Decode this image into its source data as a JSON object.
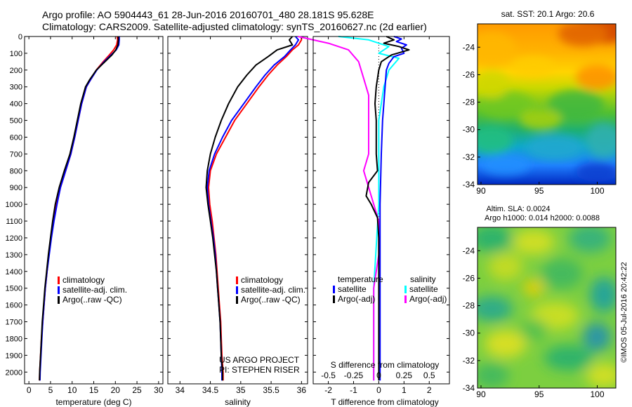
{
  "header": {
    "title_line1": "Argo profile: AO 5904443_61 28-Jun-2016 20160701_480 28.181S 95.628E",
    "title_line2": "Climatology: CARS2009. Satellite-adjusted climatology: synTS_20160627.nc (2d earlier)"
  },
  "colors": {
    "climatology": "#ff0000",
    "satellite": "#0000ff",
    "argo": "#000000",
    "salinity_satellite": "#00ffff",
    "salinity_argo": "#ff00ff"
  },
  "chart_data": [
    {
      "id": "temperature",
      "type": "line",
      "xlabel": "temperature (deg C)",
      "ylabel": "",
      "xlim": [
        -1,
        31
      ],
      "ylim": [
        2070,
        0
      ],
      "xticks": [
        0,
        5,
        10,
        15,
        20,
        25,
        30
      ],
      "yticks": [
        0,
        100,
        200,
        300,
        400,
        500,
        600,
        700,
        800,
        900,
        1000,
        1100,
        1200,
        1300,
        1400,
        1500,
        1600,
        1700,
        1800,
        1900,
        2000
      ],
      "legend": {
        "placement": "bottom-left",
        "entries": [
          "climatology",
          "satellite-adj. clim.",
          "Argo(..raw -QC)"
        ]
      },
      "series": [
        {
          "name": "climatology",
          "color": "#ff0000",
          "points": [
            [
              20.4,
              0
            ],
            [
              20.5,
              20
            ],
            [
              20.3,
              50
            ],
            [
              19.6,
              80
            ],
            [
              18.6,
              110
            ],
            [
              17.2,
              150
            ],
            [
              15.6,
              200
            ],
            [
              14.2,
              260
            ],
            [
              13.3,
              300
            ],
            [
              12.2,
              400
            ],
            [
              11.4,
              500
            ],
            [
              10.6,
              600
            ],
            [
              9.7,
              700
            ],
            [
              8.5,
              800
            ],
            [
              7.3,
              900
            ],
            [
              6.4,
              1000
            ],
            [
              5.7,
              1100
            ],
            [
              5.1,
              1200
            ],
            [
              4.6,
              1300
            ],
            [
              4.2,
              1400
            ],
            [
              3.8,
              1500
            ],
            [
              3.5,
              1600
            ],
            [
              3.2,
              1700
            ],
            [
              2.9,
              1800
            ],
            [
              2.7,
              1900
            ],
            [
              2.5,
              2000
            ],
            [
              2.45,
              2050
            ]
          ]
        },
        {
          "name": "satellite-adj. clim.",
          "color": "#0000ff",
          "points": [
            [
              20.9,
              0
            ],
            [
              20.9,
              20
            ],
            [
              20.8,
              50
            ],
            [
              20.2,
              80
            ],
            [
              19.0,
              110
            ],
            [
              17.4,
              150
            ],
            [
              15.7,
              200
            ],
            [
              14.2,
              260
            ],
            [
              13.3,
              300
            ],
            [
              12.2,
              400
            ],
            [
              11.4,
              500
            ],
            [
              10.6,
              600
            ],
            [
              9.7,
              700
            ],
            [
              8.5,
              800
            ],
            [
              7.3,
              900
            ],
            [
              6.5,
              1000
            ],
            [
              5.8,
              1100
            ],
            [
              5.2,
              1200
            ],
            [
              4.7,
              1300
            ],
            [
              4.2,
              1400
            ],
            [
              3.8,
              1500
            ],
            [
              3.5,
              1600
            ],
            [
              3.2,
              1700
            ],
            [
              3.0,
              1800
            ],
            [
              2.8,
              1900
            ],
            [
              2.6,
              2000
            ],
            [
              2.55,
              2050
            ]
          ]
        },
        {
          "name": "Argo(..raw -QC)",
          "color": "#000000",
          "points": [
            [
              20.7,
              0
            ],
            [
              20.7,
              20
            ],
            [
              20.6,
              50
            ],
            [
              20.1,
              80
            ],
            [
              19.2,
              110
            ],
            [
              17.6,
              150
            ],
            [
              15.6,
              200
            ],
            [
              14.0,
              260
            ],
            [
              13.1,
              300
            ],
            [
              12.0,
              400
            ],
            [
              11.2,
              500
            ],
            [
              10.4,
              600
            ],
            [
              9.5,
              700
            ],
            [
              8.2,
              800
            ],
            [
              7.0,
              900
            ],
            [
              6.1,
              1000
            ],
            [
              5.5,
              1100
            ],
            [
              5.0,
              1200
            ],
            [
              4.5,
              1300
            ],
            [
              4.1,
              1400
            ],
            [
              3.7,
              1500
            ],
            [
              3.4,
              1600
            ],
            [
              3.1,
              1700
            ],
            [
              2.9,
              1800
            ],
            [
              2.7,
              1900
            ],
            [
              2.5,
              2000
            ],
            [
              2.45,
              2050
            ]
          ]
        }
      ]
    },
    {
      "id": "salinity",
      "type": "line",
      "xlabel": "salinity",
      "ylabel": "",
      "xlim": [
        33.8,
        36.1
      ],
      "ylim": [
        2070,
        0
      ],
      "xticks": [
        34,
        34.5,
        35,
        35.5,
        36
      ],
      "legend": {
        "placement": "bottom-right",
        "entries": [
          "climatology",
          "satellite-adj. clim.",
          "Argo(..raw -QC)"
        ]
      },
      "annotation": [
        "US ARGO PROJECT",
        "PI: STEPHEN RISER"
      ],
      "series": [
        {
          "name": "climatology",
          "color": "#ff0000",
          "points": [
            [
              36.0,
              0
            ],
            [
              36.0,
              20
            ],
            [
              35.95,
              50
            ],
            [
              35.85,
              80
            ],
            [
              35.75,
              120
            ],
            [
              35.6,
              170
            ],
            [
              35.45,
              230
            ],
            [
              35.3,
              300
            ],
            [
              35.1,
              400
            ],
            [
              34.9,
              500
            ],
            [
              34.75,
              600
            ],
            [
              34.6,
              700
            ],
            [
              34.5,
              800
            ],
            [
              34.47,
              900
            ],
            [
              34.49,
              1000
            ],
            [
              34.53,
              1100
            ],
            [
              34.56,
              1200
            ],
            [
              34.59,
              1300
            ],
            [
              34.61,
              1400
            ],
            [
              34.63,
              1500
            ],
            [
              34.65,
              1600
            ],
            [
              34.67,
              1700
            ],
            [
              34.68,
              1800
            ],
            [
              34.69,
              1900
            ],
            [
              34.71,
              2000
            ],
            [
              34.71,
              2050
            ]
          ]
        },
        {
          "name": "satellite-adj. clim.",
          "color": "#0000ff",
          "points": [
            [
              35.9,
              0
            ],
            [
              35.95,
              20
            ],
            [
              35.9,
              50
            ],
            [
              35.82,
              80
            ],
            [
              35.72,
              120
            ],
            [
              35.55,
              170
            ],
            [
              35.4,
              230
            ],
            [
              35.25,
              300
            ],
            [
              35.05,
              400
            ],
            [
              34.85,
              500
            ],
            [
              34.7,
              600
            ],
            [
              34.57,
              700
            ],
            [
              34.48,
              800
            ],
            [
              34.45,
              900
            ],
            [
              34.47,
              1000
            ],
            [
              34.51,
              1100
            ],
            [
              34.55,
              1200
            ],
            [
              34.58,
              1300
            ],
            [
              34.6,
              1400
            ],
            [
              34.62,
              1500
            ],
            [
              34.64,
              1600
            ],
            [
              34.66,
              1700
            ],
            [
              34.67,
              1800
            ],
            [
              34.68,
              1900
            ],
            [
              34.69,
              2000
            ],
            [
              34.69,
              2050
            ]
          ]
        },
        {
          "name": "Argo(..raw -QC)",
          "color": "#000000",
          "points": [
            [
              35.85,
              0
            ],
            [
              35.8,
              20
            ],
            [
              35.85,
              50
            ],
            [
              35.6,
              80
            ],
            [
              35.45,
              120
            ],
            [
              35.25,
              170
            ],
            [
              35.1,
              230
            ],
            [
              34.95,
              300
            ],
            [
              34.8,
              400
            ],
            [
              34.68,
              500
            ],
            [
              34.58,
              600
            ],
            [
              34.5,
              700
            ],
            [
              34.45,
              800
            ],
            [
              34.43,
              900
            ],
            [
              34.46,
              1000
            ],
            [
              34.5,
              1100
            ],
            [
              34.54,
              1200
            ],
            [
              34.57,
              1300
            ],
            [
              34.6,
              1400
            ],
            [
              34.62,
              1500
            ],
            [
              34.64,
              1600
            ],
            [
              34.66,
              1700
            ],
            [
              34.67,
              1800
            ],
            [
              34.68,
              1900
            ],
            [
              34.7,
              2000
            ],
            [
              34.7,
              2050
            ]
          ]
        }
      ]
    },
    {
      "id": "difference",
      "type": "line",
      "xlabel": "T difference from climatology",
      "xlabel_top": "S difference from climatology",
      "ylabel": "",
      "xlim": [
        -2.6,
        2.8
      ],
      "ylim": [
        2070,
        0
      ],
      "xticks_T": [
        -2,
        -1,
        0,
        1,
        2
      ],
      "xticks_S": [
        -0.5,
        -0.25,
        0,
        0.25,
        0.5
      ],
      "legend": {
        "placement": "bottom",
        "temperature_title": "temperature",
        "salinity_title": "salinity",
        "entries": [
          "satellite",
          "Argo(-adj)",
          "satellite",
          "Argo(-adj)"
        ]
      },
      "series": [
        {
          "name": "temperature satellite",
          "color": "#0000ff",
          "points": [
            [
              0.6,
              0
            ],
            [
              0.9,
              15
            ],
            [
              0.7,
              30
            ],
            [
              1.1,
              50
            ],
            [
              0.9,
              70
            ],
            [
              1.0,
              100
            ],
            [
              0.6,
              120
            ],
            [
              0.4,
              160
            ],
            [
              0.3,
              200
            ],
            [
              0.25,
              300
            ],
            [
              0.2,
              400
            ],
            [
              0.15,
              500
            ],
            [
              0.1,
              700
            ],
            [
              0.05,
              1000
            ],
            [
              0.05,
              1500
            ],
            [
              0.05,
              2050
            ]
          ]
        },
        {
          "name": "temperature Argo(-adj)",
          "color": "#000000",
          "points": [
            [
              0.3,
              0
            ],
            [
              0.6,
              20
            ],
            [
              0.2,
              40
            ],
            [
              0.8,
              60
            ],
            [
              1.2,
              80
            ],
            [
              0.5,
              110
            ],
            [
              0.1,
              150
            ],
            [
              0.0,
              200
            ],
            [
              -0.1,
              300
            ],
            [
              -0.15,
              400
            ],
            [
              -0.1,
              500
            ],
            [
              -0.1,
              600
            ],
            [
              -0.1,
              700
            ],
            [
              -0.05,
              800
            ],
            [
              -0.4,
              870
            ],
            [
              -0.5,
              950
            ],
            [
              -0.3,
              1000
            ],
            [
              -0.05,
              1080
            ],
            [
              0.0,
              1200
            ],
            [
              0.0,
              1500
            ],
            [
              0.0,
              2050
            ]
          ]
        },
        {
          "name": "salinity satellite",
          "color": "#00ffff",
          "points": [
            [
              -0.4,
              0
            ],
            [
              -0.1,
              20
            ],
            [
              0.1,
              60
            ],
            [
              0.0,
              100
            ],
            [
              0.2,
              130
            ],
            [
              0.1,
              200
            ],
            [
              0.05,
              300
            ],
            [
              0.0,
              500
            ],
            [
              0.0,
              700
            ],
            [
              0.0,
              1000
            ],
            [
              -0.05,
              1500
            ],
            [
              -0.05,
              2050
            ]
          ]
        },
        {
          "name": "salinity Argo(-adj)",
          "color": "#ff00ff",
          "points": [
            [
              -0.8,
              0
            ],
            [
              -0.5,
              40
            ],
            [
              -0.3,
              80
            ],
            [
              -0.2,
              150
            ],
            [
              -0.15,
              250
            ],
            [
              -0.1,
              350
            ],
            [
              -0.1,
              500
            ],
            [
              -0.1,
              700
            ],
            [
              -0.15,
              800
            ],
            [
              -0.1,
              900
            ],
            [
              0.0,
              1100
            ],
            [
              0.0,
              1300
            ],
            [
              -0.05,
              1500
            ],
            [
              -0.05,
              2050
            ]
          ]
        }
      ]
    },
    {
      "id": "sst-map",
      "type": "heatmap",
      "title": "sat. SST: 20.1 Argo: 20.6",
      "xlim": [
        89.7,
        101.6
      ],
      "ylim": [
        -34,
        -22.3
      ],
      "xticks": [
        90,
        95,
        100
      ],
      "yticks": [
        -24,
        -26,
        -28,
        -30,
        -32,
        -34
      ]
    },
    {
      "id": "sla-map",
      "type": "heatmap",
      "title": "Altim. SLA: 0.0024",
      "subtitle": "Argo h1000: 0.014 h2000: 0.0088",
      "xlim": [
        89.7,
        101.6
      ],
      "ylim": [
        -34,
        -22.3
      ],
      "xticks": [
        90,
        95,
        100
      ],
      "yticks": [
        -24,
        -26,
        -28,
        -30,
        -32,
        -34
      ]
    }
  ],
  "stamp": "©IMOS 05-Jul-2016 20:42:22"
}
